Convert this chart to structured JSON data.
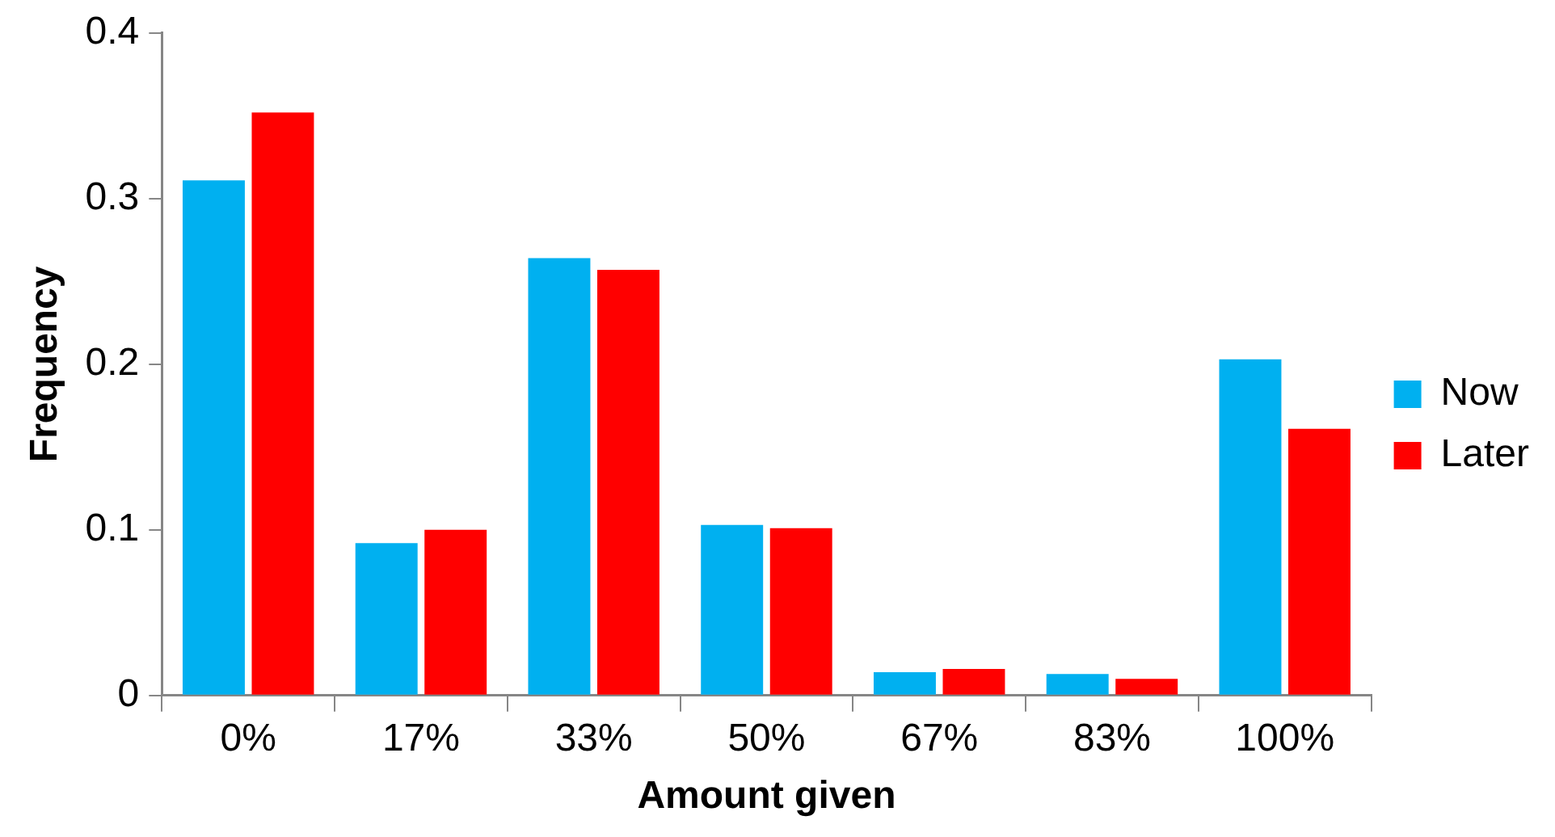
{
  "chart_data": {
    "type": "bar",
    "xlabel": "Amount given",
    "ylabel": "Frequency",
    "categories": [
      "0%",
      "17%",
      "33%",
      "50%",
      "67%",
      "83%",
      "100%"
    ],
    "series": [
      {
        "name": "Now",
        "color": "#00b0f0",
        "values": [
          0.311,
          0.092,
          0.264,
          0.103,
          0.014,
          0.013,
          0.203
        ]
      },
      {
        "name": "Later",
        "color": "#ff0000",
        "values": [
          0.352,
          0.1,
          0.257,
          0.101,
          0.016,
          0.01,
          0.161
        ]
      }
    ],
    "ylim": [
      0,
      0.4
    ],
    "yticks": [
      0,
      0.1,
      0.2,
      0.3,
      0.4
    ],
    "grid": false,
    "legend": "right"
  }
}
